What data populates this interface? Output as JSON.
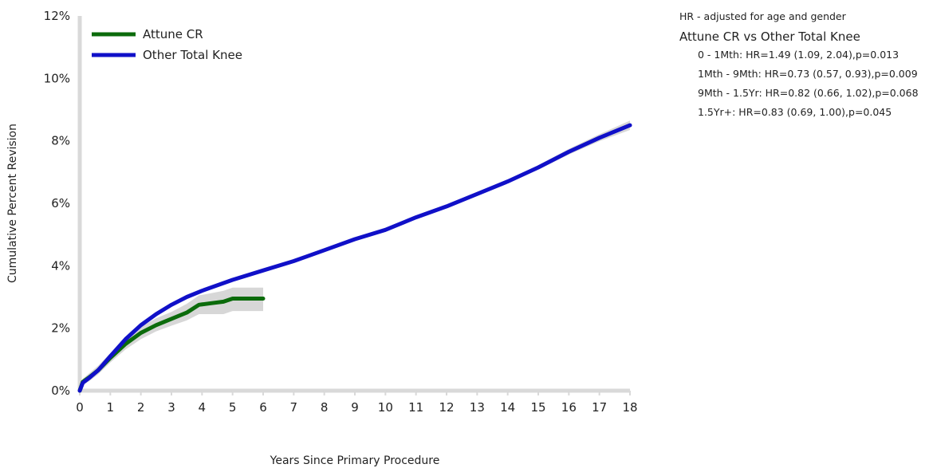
{
  "chart_data": {
    "type": "line",
    "title": "",
    "xlabel": "Years Since Primary Procedure",
    "ylabel": "Cumulative Percent Revision",
    "xlim": [
      0,
      18
    ],
    "ylim": [
      0,
      12
    ],
    "x_ticks": [
      "0",
      "1",
      "2",
      "3",
      "4",
      "5",
      "6",
      "7",
      "8",
      "9",
      "10",
      "11",
      "12",
      "13",
      "14",
      "15",
      "16",
      "17",
      "18"
    ],
    "y_ticks": [
      "0%",
      "2%",
      "4%",
      "6%",
      "8%",
      "10%",
      "12%"
    ],
    "grid": false,
    "legend_position": "top-left",
    "series": [
      {
        "name": "Attune CR",
        "color": "#0b6b0b",
        "x": [
          0,
          0.1,
          0.3,
          0.6,
          1.0,
          1.5,
          2.0,
          2.5,
          3.0,
          3.5,
          3.9,
          4.3,
          4.7,
          5.0,
          5.5,
          6.0
        ],
        "y": [
          0,
          0.28,
          0.42,
          0.65,
          1.05,
          1.5,
          1.85,
          2.1,
          2.3,
          2.5,
          2.75,
          2.8,
          2.85,
          2.95,
          2.95,
          2.95
        ],
        "ci_lower": [
          0,
          0.18,
          0.3,
          0.52,
          0.9,
          1.32,
          1.65,
          1.9,
          2.08,
          2.25,
          2.45,
          2.45,
          2.45,
          2.55,
          2.55,
          2.55
        ],
        "ci_upper": [
          0,
          0.38,
          0.55,
          0.8,
          1.2,
          1.68,
          2.05,
          2.32,
          2.52,
          2.78,
          3.05,
          3.12,
          3.2,
          3.3,
          3.3,
          3.3
        ]
      },
      {
        "name": "Other Total Knee",
        "color": "#1010c8",
        "x": [
          0,
          0.1,
          0.3,
          0.6,
          1.0,
          1.5,
          2.0,
          2.5,
          3.0,
          3.5,
          4.0,
          5.0,
          6.0,
          7.0,
          8.0,
          9.0,
          10.0,
          11.0,
          12.0,
          13.0,
          14.0,
          15.0,
          16.0,
          17.0,
          18.0
        ],
        "y": [
          0,
          0.25,
          0.4,
          0.65,
          1.1,
          1.65,
          2.1,
          2.45,
          2.75,
          3.0,
          3.2,
          3.55,
          3.85,
          4.15,
          4.5,
          4.85,
          5.15,
          5.55,
          5.9,
          6.3,
          6.7,
          7.15,
          7.65,
          8.1,
          8.5
        ],
        "ci_lower": [
          0,
          0.22,
          0.37,
          0.62,
          1.07,
          1.62,
          2.07,
          2.42,
          2.72,
          2.97,
          3.17,
          3.52,
          3.82,
          4.12,
          4.47,
          4.82,
          5.12,
          5.51,
          5.86,
          6.25,
          6.64,
          7.08,
          7.56,
          7.99,
          8.35
        ],
        "ci_upper": [
          0,
          0.28,
          0.43,
          0.68,
          1.13,
          1.68,
          2.13,
          2.48,
          2.78,
          3.03,
          3.23,
          3.58,
          3.88,
          4.18,
          4.53,
          4.88,
          5.18,
          5.59,
          5.94,
          6.35,
          6.76,
          7.22,
          7.74,
          8.21,
          8.65
        ]
      }
    ],
    "ci_color": "#d0d0d0"
  },
  "hr_panel": {
    "note": "HR - adjusted for age and gender",
    "title": "Attune CR vs Other Total Knee",
    "rows": [
      "0 - 1Mth: HR=1.49 (1.09, 2.04),p=0.013",
      "1Mth - 9Mth: HR=0.73 (0.57, 0.93),p=0.009",
      "9Mth - 1.5Yr: HR=0.82 (0.66, 1.02),p=0.068",
      "1.5Yr+: HR=0.83 (0.69, 1.00),p=0.045"
    ]
  }
}
